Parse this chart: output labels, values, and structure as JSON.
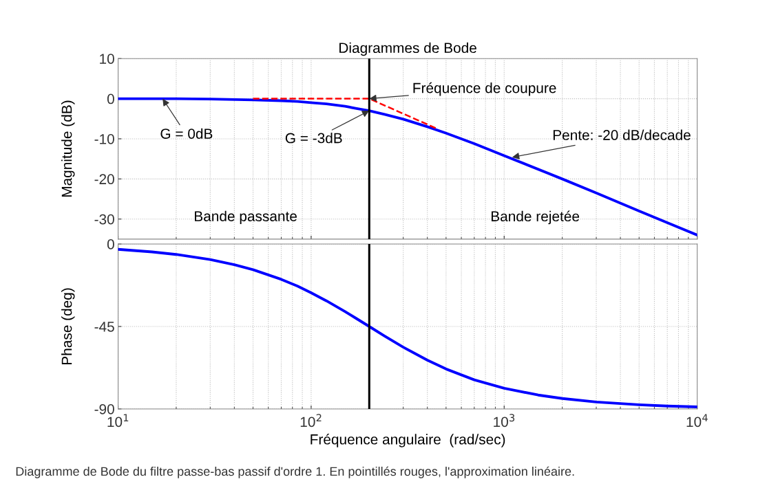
{
  "chart_data": [
    {
      "type": "line",
      "title": "Diagrammes de Bode",
      "ylabel": "Magnitude (dB)",
      "log": "x",
      "xlim": [
        10,
        10000
      ],
      "xticks": [
        {
          "value": 10,
          "label": null
        },
        {
          "value": 100,
          "label": null
        },
        {
          "value": 1000,
          "label": null
        },
        {
          "value": 10000,
          "label": null
        }
      ],
      "ylim": [
        -35,
        10
      ],
      "yticks": [
        -30,
        -20,
        -10,
        0,
        10
      ],
      "tick_labels": "y",
      "grid": true,
      "series": [
        {
          "color": "#0000ff",
          "x": [
            10,
            20,
            30,
            50,
            70,
            85,
            100,
            120,
            150,
            170,
            200,
            240,
            300,
            400,
            500,
            700,
            1000,
            2000,
            3000,
            5000,
            7000,
            10000
          ],
          "values": [
            0,
            0,
            -0.1,
            -0.3,
            -0.5,
            -0.7,
            -1,
            -1.3,
            -1.9,
            -2.4,
            -3,
            -3.9,
            -5.1,
            -7,
            -8.6,
            -11.2,
            -14.2,
            -20,
            -23.5,
            -28,
            -30.9,
            -34
          ]
        },
        {
          "color": "#ff0000",
          "line_style": "dashed",
          "x": [
            50,
            200,
            450
          ],
          "values": [
            0,
            0,
            -7.5
          ]
        }
      ],
      "ref_lines": [
        {
          "axis": "x",
          "value": 200,
          "color": "#000000"
        }
      ],
      "annotations": [
        {
          "text": "Fréquence de coupure",
          "x": 200,
          "y": 0
        },
        {
          "text": "G = 0dB",
          "x": 17,
          "y": 0
        },
        {
          "text": "G = -3dB",
          "x": 200,
          "y": -3
        },
        {
          "text": "Pente: -20 dB/decade",
          "x": 1100,
          "y": -14.6
        },
        "Bande passante",
        "Bande rejetée"
      ]
    },
    {
      "type": "line",
      "ylabel": "Phase (deg)",
      "xlabel": "Fréquence angulaire  (rad/sec)",
      "log": "x",
      "xlim": [
        10,
        10000
      ],
      "xticks": [
        {
          "value": 10,
          "label": "10$^{1}$"
        },
        {
          "value": 100,
          "label": "10$^{2}$"
        },
        {
          "value": 1000,
          "label": "10$^{3}$"
        },
        {
          "value": 10000,
          "label": "10$^{4}$"
        }
      ],
      "ylim": [
        -90,
        0
      ],
      "yticks": [
        -90,
        -45,
        0
      ],
      "grid": true,
      "series": [
        {
          "color": "#0000ff",
          "x": [
            10,
            15,
            20,
            30,
            40,
            50,
            70,
            85,
            100,
            120,
            150,
            170,
            200,
            240,
            300,
            400,
            500,
            700,
            1000,
            1500,
            2000,
            3000,
            5000,
            7000,
            10000
          ],
          "values": [
            -2.9,
            -4.3,
            -5.7,
            -8.5,
            -11.3,
            -14,
            -19.3,
            -23,
            -26.6,
            -31,
            -36.9,
            -40.4,
            -45,
            -50.2,
            -56.3,
            -63.4,
            -68.2,
            -74.1,
            -78.7,
            -82.4,
            -84.3,
            -86.2,
            -87.7,
            -88.4,
            -88.9
          ]
        }
      ],
      "ref_lines": [
        {
          "axis": "x",
          "value": 200,
          "color": "#000000"
        }
      ],
      "annotations": [
        "Diagramme de Bode du filtre passe-bas passif d'ordre 1. En pointillés rouges, l'approximation linéaire."
      ]
    }
  ]
}
